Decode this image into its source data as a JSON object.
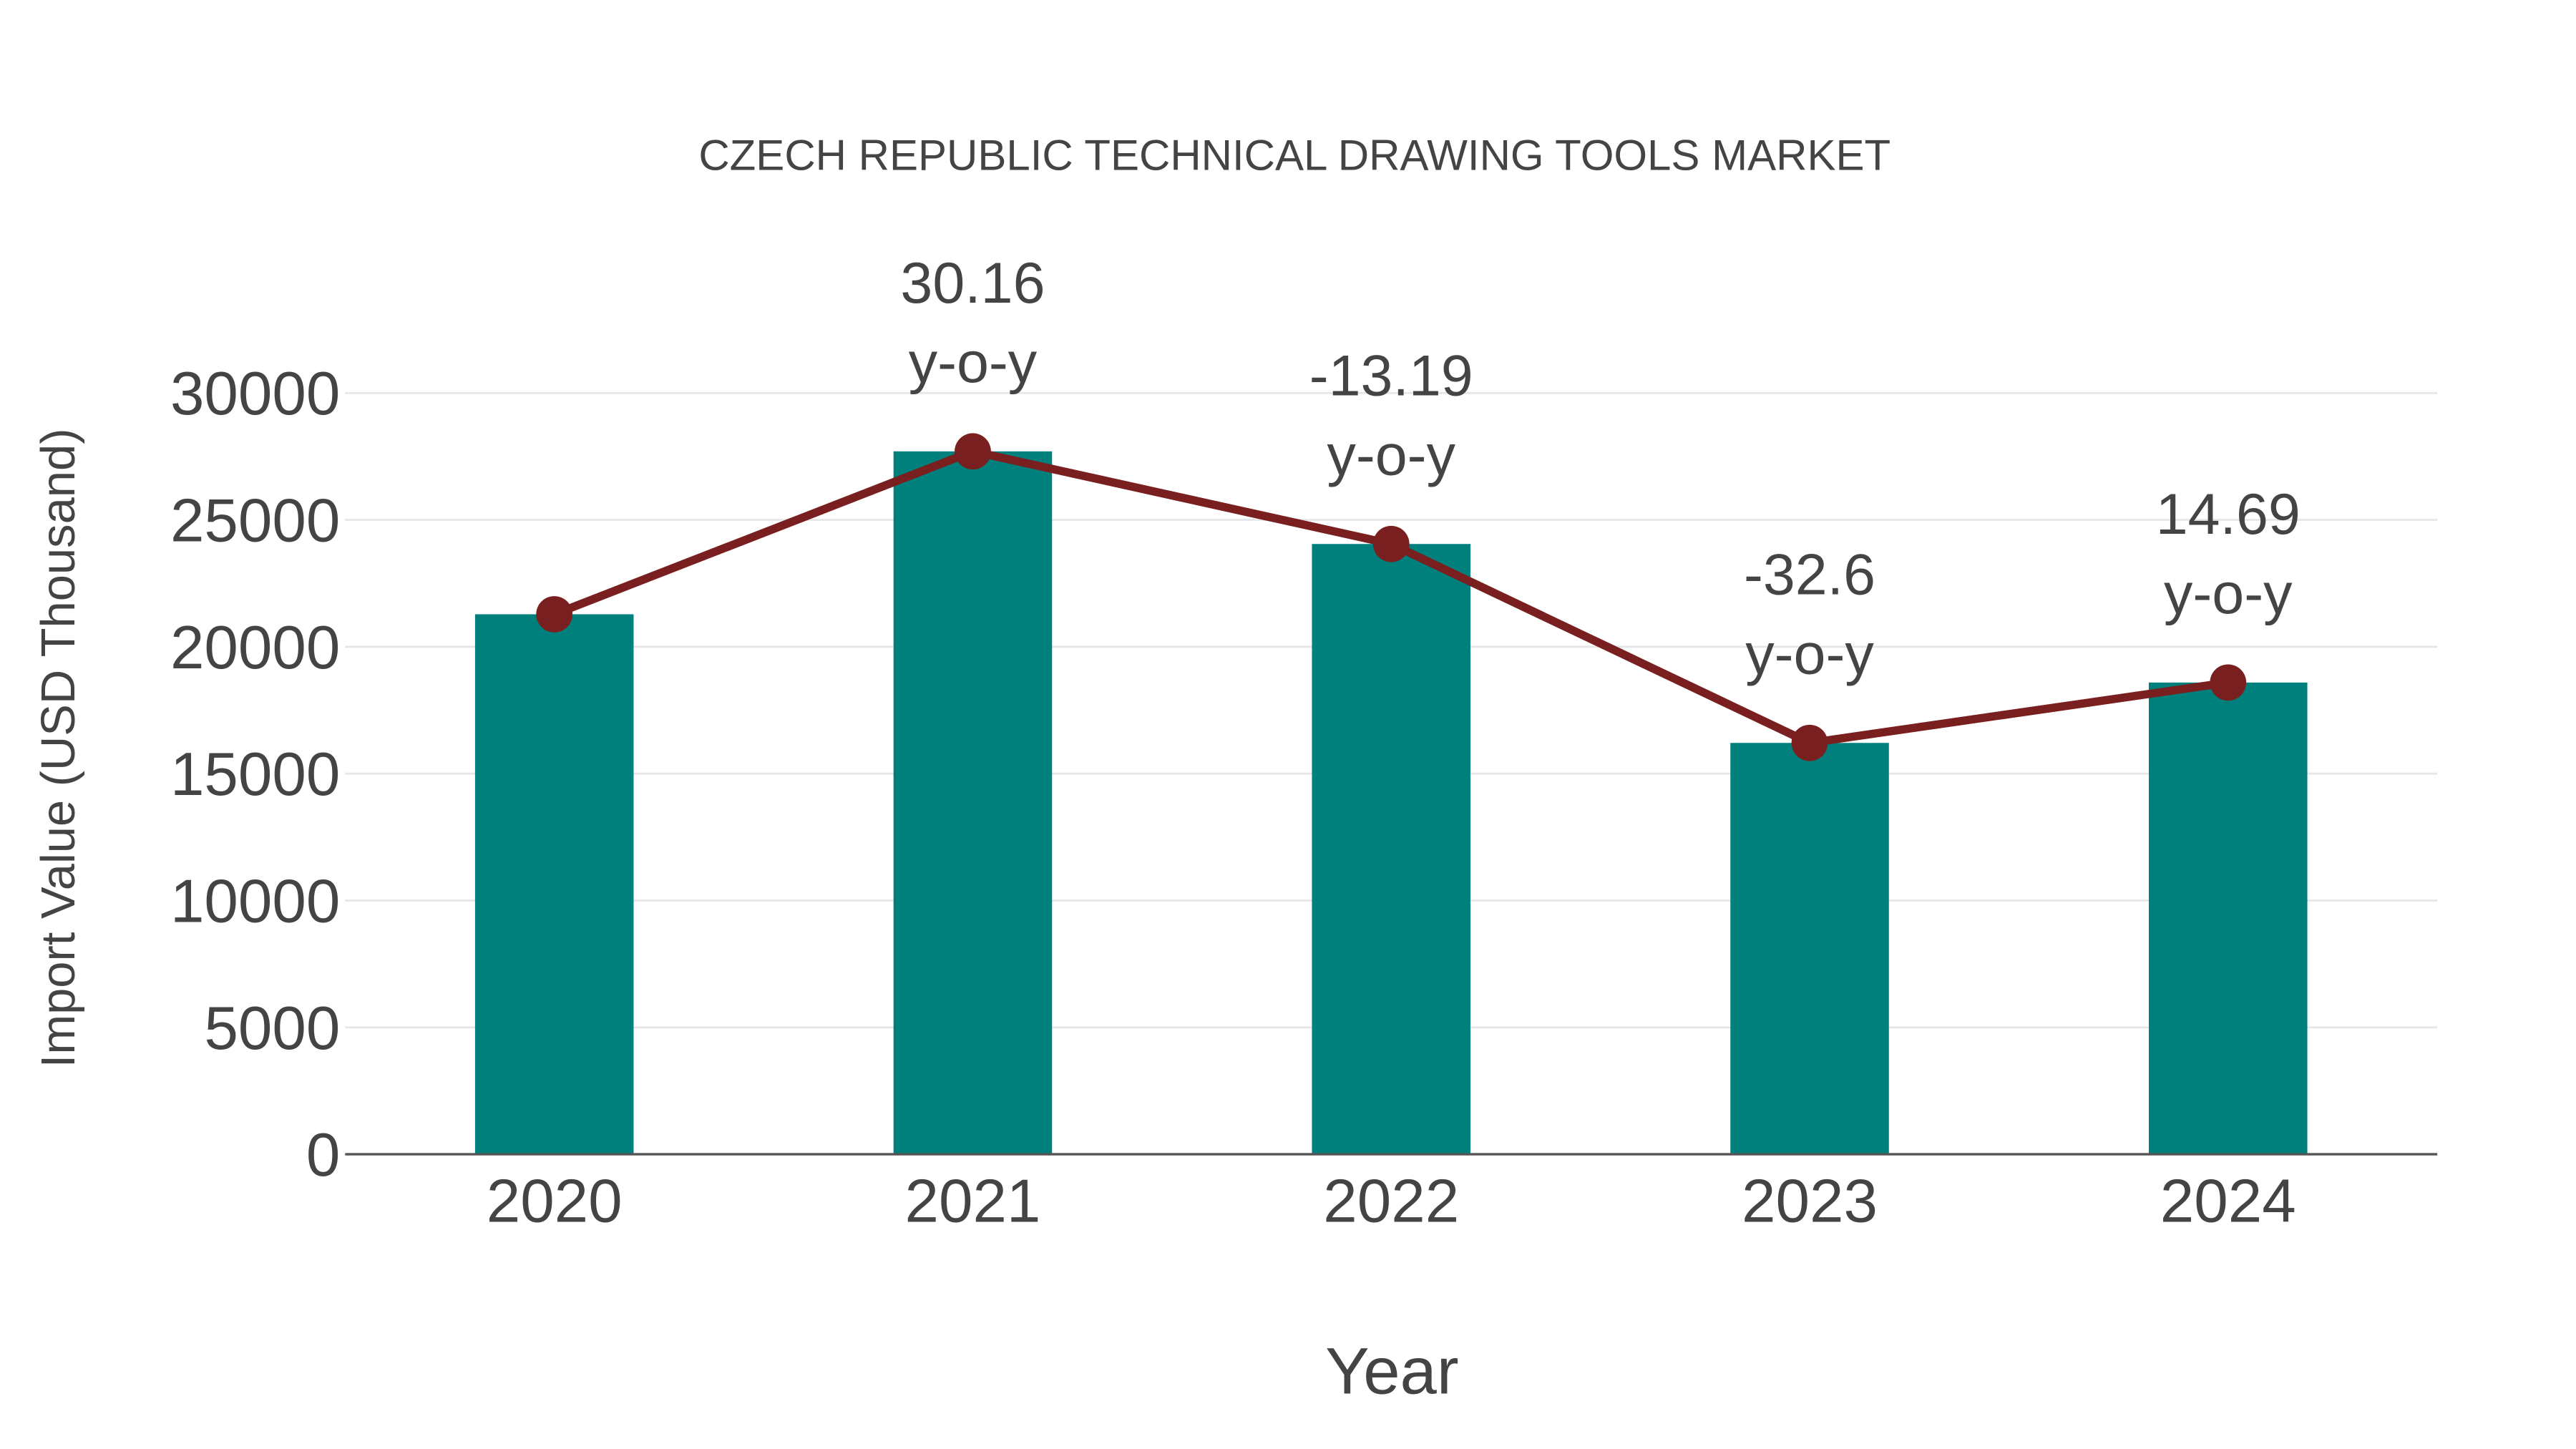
{
  "chart_data": {
    "type": "bar",
    "title": "CZECH REPUBLIC TECHNICAL DRAWING TOOLS MARKET",
    "xlabel": "Year",
    "ylabel": "Import Value (USD Thousand)",
    "categories": [
      "2020",
      "2021",
      "2022",
      "2023",
      "2024"
    ],
    "series": [
      {
        "name": "Import Value",
        "type": "bar",
        "color": "#00807c",
        "values": [
          21280,
          27700,
          24050,
          16210,
          18590
        ]
      },
      {
        "name": "Trend",
        "type": "line",
        "color": "#7a1f1f",
        "values": [
          21280,
          27700,
          24050,
          16210,
          18590
        ]
      }
    ],
    "annotations": [
      {
        "category": "2021",
        "value": "30.16",
        "suffix": "y-o-y"
      },
      {
        "category": "2022",
        "value": "-13.19",
        "suffix": "y-o-y"
      },
      {
        "category": "2023",
        "value": "-32.6",
        "suffix": "y-o-y"
      },
      {
        "category": "2024",
        "value": "14.69",
        "suffix": "y-o-y"
      }
    ],
    "yticks": [
      "0",
      "5000",
      "10000",
      "15000",
      "20000",
      "25000",
      "30000"
    ],
    "ylim": [
      0,
      30000
    ],
    "grid": true,
    "legend": "none"
  }
}
